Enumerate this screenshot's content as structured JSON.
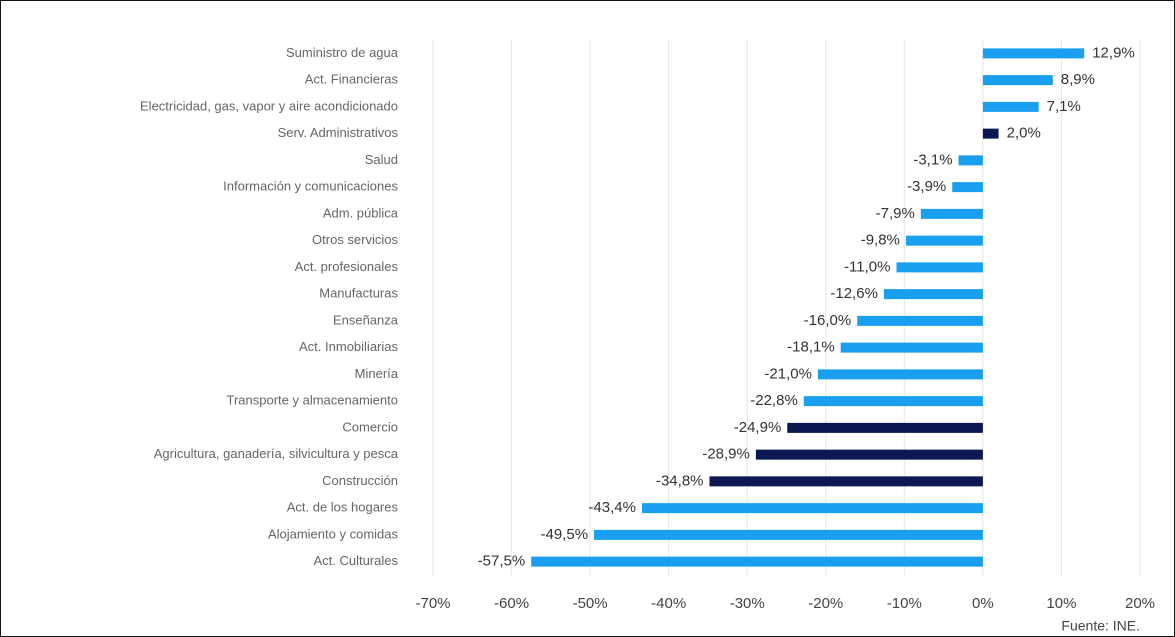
{
  "chart_data": {
    "type": "bar",
    "orientation": "horizontal",
    "categories": [
      "Suministro de agua",
      "Act. Financieras",
      "Electricidad, gas, vapor y aire acondicionado",
      "Serv. Administrativos",
      "Salud",
      "Información y comunicaciones",
      "Adm. pública",
      "Otros servicios",
      "Act. profesionales",
      "Manufacturas",
      "Enseñanza",
      "Act. Inmobiliarias",
      "Minería",
      "Transporte y almacenamiento",
      "Comercio",
      "Agricultura, ganadería, silvicultura y pesca",
      "Construcción",
      "Act. de los hogares",
      "Alojamiento y comidas",
      "Act. Culturales"
    ],
    "values": [
      12.9,
      8.9,
      7.1,
      2.0,
      -3.1,
      -3.9,
      -7.9,
      -9.8,
      -11.0,
      -12.6,
      -16.0,
      -18.1,
      -21.0,
      -22.8,
      -24.9,
      -28.9,
      -34.8,
      -43.4,
      -49.5,
      -57.5
    ],
    "value_labels": [
      "12,9%",
      "8,9%",
      "7,1%",
      "2,0%",
      "-3,1%",
      "-3,9%",
      "-7,9%",
      "-9,8%",
      "-11,0%",
      "-12,6%",
      "-16,0%",
      "-18,1%",
      "-21,0%",
      "-22,8%",
      "-24,9%",
      "-28,9%",
      "-34,8%",
      "-43,4%",
      "-49,5%",
      "-57,5%"
    ],
    "colors": [
      "#1a9ff0",
      "#1a9ff0",
      "#1a9ff0",
      "#0b1750",
      "#1a9ff0",
      "#1a9ff0",
      "#1a9ff0",
      "#1a9ff0",
      "#1a9ff0",
      "#1a9ff0",
      "#1a9ff0",
      "#1a9ff0",
      "#1a9ff0",
      "#1a9ff0",
      "#0b1750",
      "#0b1750",
      "#0b1750",
      "#1a9ff0",
      "#1a9ff0",
      "#1a9ff0"
    ],
    "xlim": [
      -70,
      20
    ],
    "xticks": [
      {
        "value": -70,
        "label": "-70%"
      },
      {
        "value": -60,
        "label": "-60%"
      },
      {
        "value": -50,
        "label": "-50%"
      },
      {
        "value": -40,
        "label": "-40%"
      },
      {
        "value": -30,
        "label": "-30%"
      },
      {
        "value": -20,
        "label": "-20%"
      },
      {
        "value": -10,
        "label": "-10%"
      },
      {
        "value": 0,
        "label": "0%"
      },
      {
        "value": 10,
        "label": "10%"
      },
      {
        "value": 20,
        "label": "20%"
      }
    ],
    "grid": true,
    "source": "Fuente: INE."
  }
}
